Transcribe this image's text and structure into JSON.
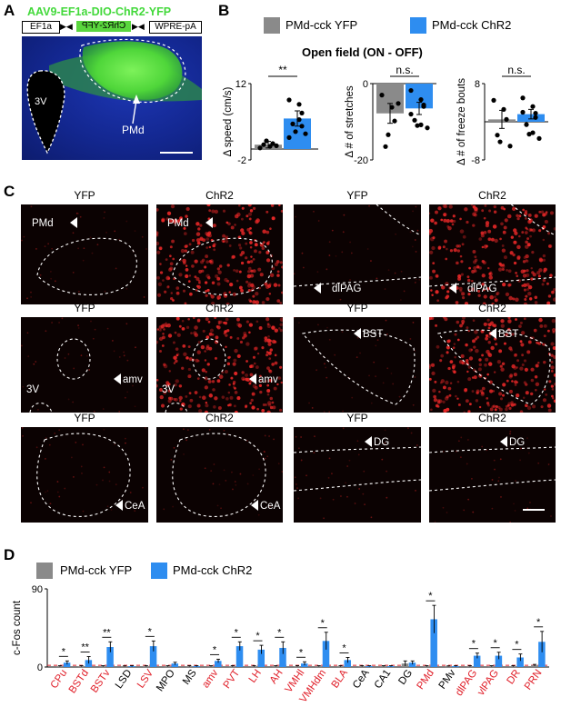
{
  "panelA": {
    "letter": "A",
    "title": "AAV9-EF1a-DIO-ChR2-YFP",
    "construct": {
      "left": "EF1a",
      "middle": "ChR2-YFP",
      "right": "WPRE-pA"
    },
    "labels": {
      "ventricle": "3V",
      "region": "PMd"
    },
    "colors": {
      "title": "#43d93b",
      "tissue": "#142a9c",
      "signal": "#5be43f"
    }
  },
  "panelB": {
    "letter": "B",
    "title": "Open field (ON - OFF)",
    "legend": [
      {
        "name": "PMd-cck YFP",
        "color": "#8a8a8a"
      },
      {
        "name": "PMd-cck ChR2",
        "color": "#2e8df0"
      }
    ]
  },
  "panelC": {
    "letter": "C",
    "rows": [
      {
        "columns": [
          "YFP",
          "ChR2",
          "YFP",
          "ChR2"
        ],
        "labels": [
          "PMd",
          "PMd",
          "dlPAG",
          "dlPAG"
        ]
      },
      {
        "columns": [
          "YFP",
          "ChR2",
          "YFP",
          "ChR2"
        ],
        "labels": [
          "amv",
          "amv",
          "BST",
          "BST"
        ],
        "ventricle": "3V"
      },
      {
        "columns": [
          "YFP",
          "ChR2",
          "YFP",
          "ChR2"
        ],
        "labels": [
          "CeA",
          "CeA",
          "DG",
          "DG"
        ]
      }
    ]
  },
  "panelD": {
    "letter": "D",
    "legend": [
      {
        "name": "PMd-cck YFP",
        "color": "#8a8a8a"
      },
      {
        "name": "PMd-cck ChR2",
        "color": "#2e8df0"
      }
    ]
  },
  "chart_data": [
    {
      "type": "bar",
      "ylabel": "Δ speed (cm/s)",
      "ylim": [
        -2,
        12
      ],
      "yticks": [
        -2,
        12
      ],
      "series": [
        {
          "name": "PMd-cck YFP",
          "values": [
            0.8
          ],
          "error": 0.6,
          "points": [
            0.2,
            0.5,
            1.0,
            0.8,
            1.5,
            0.6
          ]
        },
        {
          "name": "PMd-cck ChR2",
          "values": [
            5.6
          ],
          "error": 1.4,
          "points": [
            9.0,
            8.2,
            6.6,
            4.6,
            3.2,
            2.8,
            2.1,
            5.4,
            4.2
          ]
        }
      ],
      "significance": "**"
    },
    {
      "type": "bar",
      "ylabel": "Δ # of stretches",
      "ylim": [
        -20,
        0
      ],
      "yticks": [
        -20,
        0
      ],
      "series": [
        {
          "name": "PMd-cck YFP",
          "values": [
            -7.8
          ],
          "error": 2.6,
          "points": [
            -3.0,
            -6.2,
            -9.8,
            -16.5,
            -13.4,
            -5.2
          ]
        },
        {
          "name": "PMd-cck ChR2",
          "values": [
            -6.5
          ],
          "error": 1.6,
          "points": [
            -1.8,
            -4.2,
            -6.0,
            -9.6,
            -11.0,
            -11.6,
            -8.0,
            -10.8,
            -5.6
          ]
        }
      ],
      "significance": "n.s."
    },
    {
      "type": "bar",
      "ylabel": "Δ # of freeze bouts",
      "ylim": [
        -8,
        8
      ],
      "yticks": [
        -8,
        8
      ],
      "series": [
        {
          "name": "PMd-cck YFP",
          "values": [
            0.5
          ],
          "error": 1.9,
          "points": [
            4.5,
            2.6,
            0.5,
            -2.8,
            -4.2,
            -5.1
          ]
        },
        {
          "name": "PMd-cck ChR2",
          "values": [
            1.6
          ],
          "error": 1.0,
          "points": [
            5.0,
            3.2,
            1.8,
            -0.6,
            -2.6,
            -3.5,
            2.0,
            -2.3,
            0.9
          ]
        }
      ],
      "significance": "n.s."
    },
    {
      "type": "bar",
      "ylabel": "c-Fos count",
      "ylim": [
        0,
        90
      ],
      "yticks": [
        0,
        90
      ],
      "categories": [
        "CPu",
        "BSTd",
        "BSTv",
        "LSD",
        "LSV",
        "MPO",
        "MS",
        "amv",
        "PVT",
        "LH",
        "AH",
        "VMHl",
        "VMHdm",
        "BLA",
        "CeA",
        "CA1",
        "DG",
        "PMd",
        "PMv",
        "dlPAG",
        "vlPAG",
        "DR",
        "PRN"
      ],
      "category_colors": [
        "#e0202a",
        "#e0202a",
        "#e0202a",
        "#000000",
        "#e0202a",
        "#000000",
        "#000000",
        "#e0202a",
        "#e0202a",
        "#e0202a",
        "#e0202a",
        "#e0202a",
        "#e0202a",
        "#e0202a",
        "#000000",
        "#000000",
        "#000000",
        "#e0202a",
        "#000000",
        "#e0202a",
        "#e0202a",
        "#e0202a",
        "#e0202a"
      ],
      "series": [
        {
          "name": "PMd-cck YFP",
          "values": [
            1,
            1,
            1,
            1,
            1,
            1,
            1,
            1,
            1,
            1,
            1,
            1,
            1,
            1,
            1,
            1,
            4,
            1,
            1,
            1,
            1,
            1,
            2
          ],
          "error": [
            0.5,
            0.5,
            0.5,
            0.3,
            0.5,
            0.5,
            0.5,
            0.5,
            0.5,
            0.5,
            0.5,
            0.5,
            0.5,
            0.5,
            0.5,
            0.5,
            3,
            0.5,
            0.3,
            0.5,
            0.5,
            0.5,
            1
          ]
        },
        {
          "name": "PMd-cck ChR2",
          "values": [
            5,
            8,
            23,
            1,
            24,
            4,
            1,
            7,
            24,
            20,
            22,
            4,
            30,
            8,
            1,
            1,
            5,
            55,
            1,
            13,
            13,
            11,
            29
          ],
          "error": [
            2,
            4,
            6,
            0.5,
            6,
            1.5,
            0.5,
            2,
            5,
            5,
            7,
            2,
            10,
            3,
            0.5,
            0.5,
            2,
            16,
            0.5,
            3,
            4,
            4,
            12
          ]
        }
      ],
      "significance": [
        "*",
        "**",
        "**",
        "",
        "*",
        "",
        "",
        "*",
        "*",
        "*",
        "*",
        "*",
        "*",
        "*",
        "",
        "",
        "",
        "*",
        "",
        "*",
        "*",
        "*",
        "*"
      ]
    }
  ]
}
